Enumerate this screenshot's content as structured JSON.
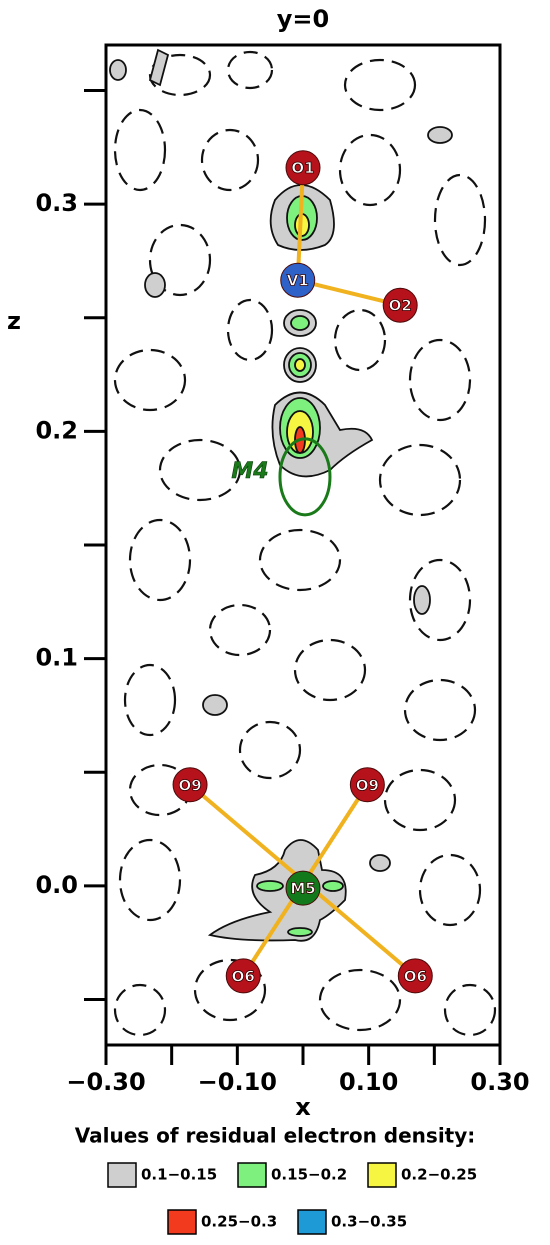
{
  "chart_data": {
    "type": "contour_map",
    "title": "y=0",
    "x_label": "x",
    "y_label": "z",
    "xlim": [
      -0.3,
      0.3
    ],
    "ylim": [
      -0.07,
      0.37
    ],
    "xticks": [
      {
        "value": -0.3,
        "label": "−0.30"
      },
      {
        "value": -0.1,
        "label": "−0.10"
      },
      {
        "value": 0.1,
        "label": "0.10"
      },
      {
        "value": 0.3,
        "label": "0.30"
      }
    ],
    "yticks": [
      {
        "value": 0,
        "label": "0.0"
      },
      0.1,
      0.2,
      0.3
    ],
    "atoms": [
      {
        "label": "O1",
        "x": 0,
        "z": 0.316,
        "color": "#b5121b"
      },
      {
        "label": "V1",
        "x": -0.008,
        "z": 0.2665,
        "color": "#2f62c8"
      },
      {
        "label": "O2",
        "x": 0.148,
        "z": 0.2555,
        "color": "#b5121b"
      },
      {
        "label": "M5",
        "x": 0,
        "z": -0.001,
        "color": "#137a1c"
      },
      {
        "label": "O9",
        "x": -0.172,
        "z": 0.0445,
        "color": "#b5121b"
      },
      {
        "label": "O9",
        "x": 0.098,
        "z": 0.0445,
        "color": "#b5121b"
      },
      {
        "label": "O6",
        "x": -0.091,
        "z": -0.0396,
        "color": "#b5121b"
      },
      {
        "label": "O6",
        "x": 0.171,
        "z": -0.0396,
        "color": "#b5121b"
      }
    ],
    "sites": [
      {
        "label": "M4",
        "x": 0.003,
        "z": 0.18,
        "color": "#1a7a1a"
      }
    ],
    "bond_color": "#f0b21e",
    "legend": {
      "title": "Values of residual electron density:",
      "items": [
        {
          "label": "0.1−0.15",
          "color": "#cfcfcf"
        },
        {
          "label": "0.15−0.2",
          "color": "#7ef07e"
        },
        {
          "label": "0.2−0.25",
          "color": "#f5f542"
        },
        {
          "label": "0.25−0.3",
          "color": "#f23a1e"
        },
        {
          "label": "0.3−0.35",
          "color": "#1e9ad6"
        }
      ]
    }
  }
}
